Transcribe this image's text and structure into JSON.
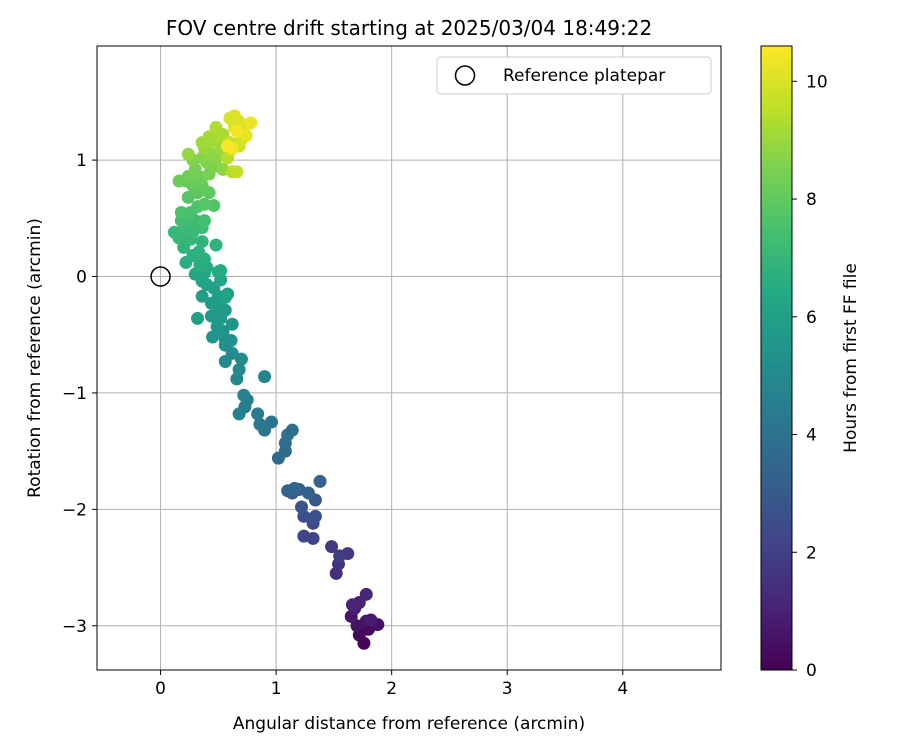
{
  "chart_data": {
    "type": "scatter",
    "title": "FOV centre drift starting at 2025/03/04 18:49:22",
    "xlabel": "Angular distance from reference (arcmin)",
    "ylabel": "Rotation from reference (arcmin)",
    "xlim": [
      -0.55,
      4.85
    ],
    "ylim": [
      -3.38,
      1.98
    ],
    "x_ticks": [
      0,
      1,
      2,
      3,
      4
    ],
    "y_ticks": [
      -3,
      -2,
      -1,
      0,
      1
    ],
    "grid": true,
    "legend": {
      "placement": "top-right",
      "entries": [
        "Reference platepar"
      ]
    },
    "reference_point": {
      "x": 0,
      "y": 0,
      "label": "Reference platepar"
    },
    "colorbar": {
      "label": "Hours from first FF file",
      "range": [
        0,
        10.6
      ],
      "ticks": [
        0,
        2,
        4,
        6,
        8,
        10
      ],
      "colormap": "viridis"
    },
    "series": [
      {
        "points": [
          [
            1.76,
            -3.15,
            0.1
          ],
          [
            1.72,
            -3.08,
            0.2
          ],
          [
            1.8,
            -3.03,
            0.3
          ],
          [
            1.88,
            -2.99,
            0.45
          ],
          [
            1.7,
            -3.0,
            0.5
          ],
          [
            1.78,
            -2.96,
            0.6
          ],
          [
            1.65,
            -2.92,
            0.7
          ],
          [
            1.82,
            -2.95,
            0.8
          ],
          [
            1.68,
            -2.85,
            0.9
          ],
          [
            1.72,
            -2.8,
            1.0
          ],
          [
            1.66,
            -2.82,
            1.1
          ],
          [
            1.78,
            -2.73,
            1.2
          ],
          [
            1.52,
            -2.55,
            1.4
          ],
          [
            1.54,
            -2.47,
            1.55
          ],
          [
            1.62,
            -2.38,
            1.7
          ],
          [
            1.48,
            -2.32,
            1.8
          ],
          [
            1.55,
            -2.4,
            1.9
          ],
          [
            1.32,
            -2.25,
            2.1
          ],
          [
            1.24,
            -2.23,
            2.2
          ],
          [
            1.32,
            -2.12,
            2.4
          ],
          [
            1.24,
            -2.06,
            2.5
          ],
          [
            1.34,
            -2.06,
            2.6
          ],
          [
            1.22,
            -1.98,
            2.75
          ],
          [
            1.34,
            -1.92,
            2.85
          ],
          [
            1.14,
            -1.86,
            3.0
          ],
          [
            1.2,
            -1.83,
            3.1
          ],
          [
            1.28,
            -1.86,
            3.2
          ],
          [
            1.38,
            -1.76,
            3.3
          ],
          [
            1.1,
            -1.84,
            3.4
          ],
          [
            1.16,
            -1.82,
            3.5
          ],
          [
            1.02,
            -1.56,
            3.65
          ],
          [
            1.08,
            -1.5,
            3.7
          ],
          [
            1.08,
            -1.43,
            3.8
          ],
          [
            1.14,
            -1.32,
            3.9
          ],
          [
            1.1,
            -1.36,
            3.95
          ],
          [
            0.96,
            -1.25,
            4.05
          ],
          [
            0.9,
            -1.32,
            4.15
          ],
          [
            0.86,
            -1.27,
            4.25
          ],
          [
            0.84,
            -1.18,
            4.35
          ],
          [
            0.73,
            -1.12,
            4.45
          ],
          [
            0.75,
            -1.06,
            4.55
          ],
          [
            0.68,
            -1.18,
            4.6
          ],
          [
            0.72,
            -1.02,
            4.7
          ],
          [
            0.9,
            -0.86,
            4.8
          ],
          [
            0.66,
            -0.88,
            4.85
          ],
          [
            0.68,
            -0.8,
            4.95
          ],
          [
            0.56,
            -0.73,
            5.05
          ],
          [
            0.7,
            -0.71,
            5.1
          ],
          [
            0.62,
            -0.66,
            5.15
          ],
          [
            0.56,
            -0.59,
            5.2
          ],
          [
            0.56,
            -0.54,
            5.3
          ],
          [
            0.61,
            -0.55,
            5.35
          ],
          [
            0.54,
            -0.47,
            5.4
          ],
          [
            0.45,
            -0.52,
            5.45
          ],
          [
            0.62,
            -0.41,
            5.5
          ],
          [
            0.49,
            -0.43,
            5.55
          ],
          [
            0.52,
            -0.36,
            5.6
          ],
          [
            0.44,
            -0.34,
            5.65
          ],
          [
            0.56,
            -0.29,
            5.7
          ],
          [
            0.5,
            -0.26,
            5.75
          ],
          [
            0.44,
            -0.23,
            5.8
          ],
          [
            0.5,
            -0.17,
            5.85
          ],
          [
            0.58,
            -0.15,
            5.9
          ],
          [
            0.36,
            -0.17,
            5.95
          ],
          [
            0.32,
            -0.36,
            6.0
          ],
          [
            0.46,
            -0.1,
            6.05
          ],
          [
            0.4,
            -0.07,
            6.1
          ],
          [
            0.56,
            -0.18,
            6.15
          ],
          [
            0.36,
            -0.04,
            6.2
          ],
          [
            0.52,
            -0.03,
            6.25
          ],
          [
            0.3,
            0.02,
            6.3
          ],
          [
            0.38,
            0.03,
            6.35
          ],
          [
            0.5,
            0.04,
            6.4
          ],
          [
            0.52,
            0.05,
            6.45
          ],
          [
            0.4,
            0.08,
            6.5
          ],
          [
            0.34,
            0.1,
            6.55
          ],
          [
            0.38,
            0.15,
            6.6
          ],
          [
            0.22,
            0.12,
            6.65
          ],
          [
            0.28,
            0.18,
            6.7
          ],
          [
            0.33,
            0.21,
            6.75
          ],
          [
            0.48,
            0.27,
            6.8
          ],
          [
            0.2,
            0.25,
            6.85
          ],
          [
            0.36,
            0.3,
            6.9
          ],
          [
            0.26,
            0.32,
            6.95
          ],
          [
            0.16,
            0.33,
            7.0
          ],
          [
            0.12,
            0.38,
            7.05
          ],
          [
            0.2,
            0.4,
            7.1
          ],
          [
            0.28,
            0.38,
            7.15
          ],
          [
            0.36,
            0.42,
            7.2
          ],
          [
            0.22,
            0.46,
            7.25
          ],
          [
            0.3,
            0.48,
            7.3
          ],
          [
            0.18,
            0.48,
            7.35
          ],
          [
            0.38,
            0.48,
            7.4
          ],
          [
            0.26,
            0.55,
            7.5
          ],
          [
            0.18,
            0.55,
            7.55
          ],
          [
            0.32,
            0.6,
            7.6
          ],
          [
            0.46,
            0.61,
            7.7
          ],
          [
            0.38,
            0.62,
            7.75
          ],
          [
            0.24,
            0.68,
            7.8
          ],
          [
            0.32,
            0.72,
            7.9
          ],
          [
            0.42,
            0.72,
            7.95
          ],
          [
            0.28,
            0.78,
            8.0
          ],
          [
            0.36,
            0.78,
            8.05
          ],
          [
            0.22,
            0.82,
            8.1
          ],
          [
            0.3,
            0.82,
            8.15
          ],
          [
            0.16,
            0.82,
            8.2
          ],
          [
            0.36,
            0.85,
            8.25
          ],
          [
            0.24,
            0.86,
            8.3
          ],
          [
            0.42,
            0.88,
            8.4
          ],
          [
            0.3,
            0.92,
            8.45
          ],
          [
            0.48,
            0.95,
            8.5
          ],
          [
            0.4,
            0.98,
            8.55
          ],
          [
            0.28,
            1.0,
            8.6
          ],
          [
            0.36,
            1.02,
            8.65
          ],
          [
            0.48,
            1.02,
            8.7
          ],
          [
            0.54,
            0.92,
            8.75
          ],
          [
            0.44,
            1.05,
            8.8
          ],
          [
            0.56,
            1.05,
            8.85
          ],
          [
            0.24,
            1.05,
            8.9
          ],
          [
            0.38,
            1.1,
            8.95
          ],
          [
            0.52,
            1.1,
            9.0
          ],
          [
            0.36,
            1.15,
            9.05
          ],
          [
            0.44,
            1.16,
            9.1
          ],
          [
            0.42,
            1.2,
            9.15
          ],
          [
            0.5,
            1.2,
            9.2
          ],
          [
            0.54,
            1.22,
            9.25
          ],
          [
            0.48,
            1.28,
            9.3
          ],
          [
            0.62,
            0.9,
            9.4
          ],
          [
            0.58,
            1.02,
            9.5
          ],
          [
            0.6,
            1.08,
            9.55
          ],
          [
            0.66,
            0.9,
            9.6
          ],
          [
            0.6,
            1.15,
            9.7
          ],
          [
            0.62,
            1.12,
            9.75
          ],
          [
            0.68,
            1.12,
            9.8
          ],
          [
            0.7,
            1.18,
            9.85
          ],
          [
            0.72,
            1.25,
            9.9
          ],
          [
            0.64,
            1.28,
            9.95
          ],
          [
            0.6,
            1.36,
            10.0
          ],
          [
            0.64,
            1.38,
            10.05
          ],
          [
            0.68,
            1.33,
            10.1
          ],
          [
            0.74,
            1.21,
            10.2
          ],
          [
            0.78,
            1.32,
            10.3
          ],
          [
            0.62,
            1.1,
            10.4
          ],
          [
            0.66,
            1.25,
            10.45
          ],
          [
            0.58,
            1.12,
            10.5
          ]
        ]
      }
    ]
  }
}
